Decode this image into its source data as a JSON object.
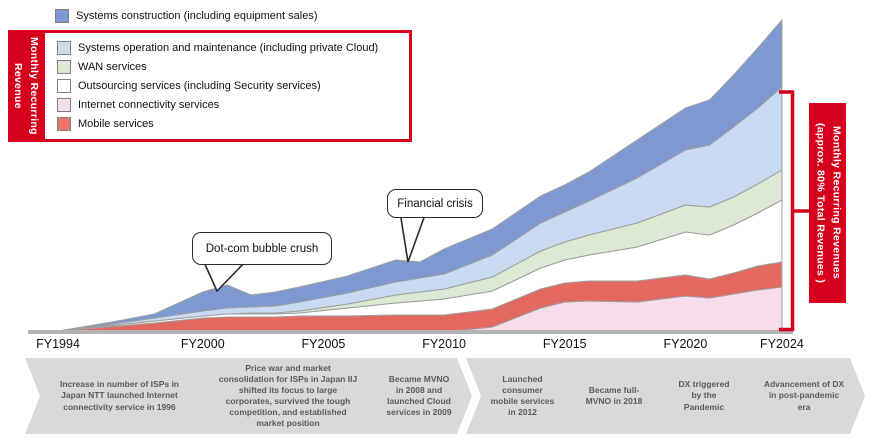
{
  "colors": {
    "accent_red": "#d6001c",
    "area_outline": "#9e9e9e",
    "timeline_fill": "#d9d9d9",
    "timeline_text": "#595959"
  },
  "left_label": "Monthly Recurring Revenue",
  "right_label": "Monthly Recurring Revenues (approx. 80% Total Revenues )",
  "legend": {
    "outside_item": {
      "label": "Systems construction (including equipment sales)",
      "color": "#7e99d2"
    },
    "items": [
      {
        "label": "Systems operation and maintenance (including private Cloud)",
        "color": "#c9dbf2"
      },
      {
        "label": "WAN services",
        "color": "#dcead4"
      },
      {
        "label": "Outsourcing services (including Security services)",
        "color": "#ffffff"
      },
      {
        "label": "Internet connectivity services",
        "color": "#f9dcea"
      },
      {
        "label": "Mobile services",
        "color": "#ee756c"
      }
    ]
  },
  "annotations": [
    {
      "text": "Dot-com bubble crush"
    },
    {
      "text": "Financial crisis"
    }
  ],
  "timeline": [
    "Increase in number of ISPs in Japan NTT launched Internet connectivity service in 1996",
    "Price war and market consolidation for ISPs in Japan IIJ shifted its focus to large corporates, survived the tough competition, and established market position",
    "Became MVNO in 2008 and launched Cloud services in 2009",
    "Launched consumer mobile services in 2012",
    "Became full-MVNO in 2018",
    "DX triggered by the Pandemic",
    "Advancement of DX in post-pandemic era"
  ],
  "chart_data": {
    "type": "area",
    "stacked": true,
    "title": "",
    "x_ticks": [
      "FY1994",
      "FY2000",
      "FY2005",
      "FY2010",
      "FY2015",
      "FY2020",
      "FY2024"
    ],
    "x": [
      1994,
      1996,
      1998,
      2000,
      2001,
      2002,
      2003,
      2004,
      2006,
      2008,
      2009,
      2010,
      2012,
      2014,
      2015,
      2016,
      2018,
      2020,
      2021,
      2022,
      2023,
      2024
    ],
    "y_axis": "none shown - values are relative revenue estimates read from the drawing",
    "legend_position": "top-left",
    "series": [
      {
        "name": "Internet connectivity services",
        "color": "#f9dcea",
        "values": [
          0,
          0,
          0,
          0,
          0,
          0,
          0,
          0,
          0,
          0,
          0,
          0,
          5,
          24,
          30,
          31,
          30,
          36,
          34,
          38,
          42,
          45
        ]
      },
      {
        "name": "Mobile services",
        "color": "#e3695f",
        "values": [
          1,
          5,
          9,
          14,
          15,
          15,
          15,
          16,
          16,
          17,
          17,
          17,
          18,
          19,
          19,
          20,
          21,
          21,
          19,
          21,
          24,
          25
        ]
      },
      {
        "name": "Outsourcing services (including Security services)",
        "color": "#ffffff",
        "values": [
          0,
          1,
          2,
          2,
          3,
          3,
          3,
          3,
          8,
          12,
          14,
          16,
          18,
          21,
          23,
          26,
          34,
          43,
          44,
          48,
          53,
          62
        ]
      },
      {
        "name": "WAN services",
        "color": "#dcead4",
        "values": [
          0,
          0,
          0,
          0,
          0,
          1,
          1,
          2,
          4,
          8,
          9,
          10,
          14,
          17,
          18,
          20,
          24,
          27,
          28,
          28,
          29,
          30
        ]
      },
      {
        "name": "Systems operation and maintenance (including private Cloud)",
        "color": "#c9dbf2",
        "values": [
          0,
          1,
          3,
          5,
          6,
          6,
          7,
          9,
          11,
          13,
          14,
          15,
          22,
          28,
          30,
          34,
          45,
          55,
          62,
          70,
          76,
          83
        ]
      },
      {
        "name": "Systems construction (including equipment sales)",
        "color": "#7e99d2",
        "values": [
          0,
          2,
          4,
          19,
          23,
          12,
          14,
          15,
          17,
          22,
          16,
          25,
          26,
          27,
          27,
          29,
          38,
          42,
          45,
          52,
          60,
          67
        ]
      }
    ]
  }
}
